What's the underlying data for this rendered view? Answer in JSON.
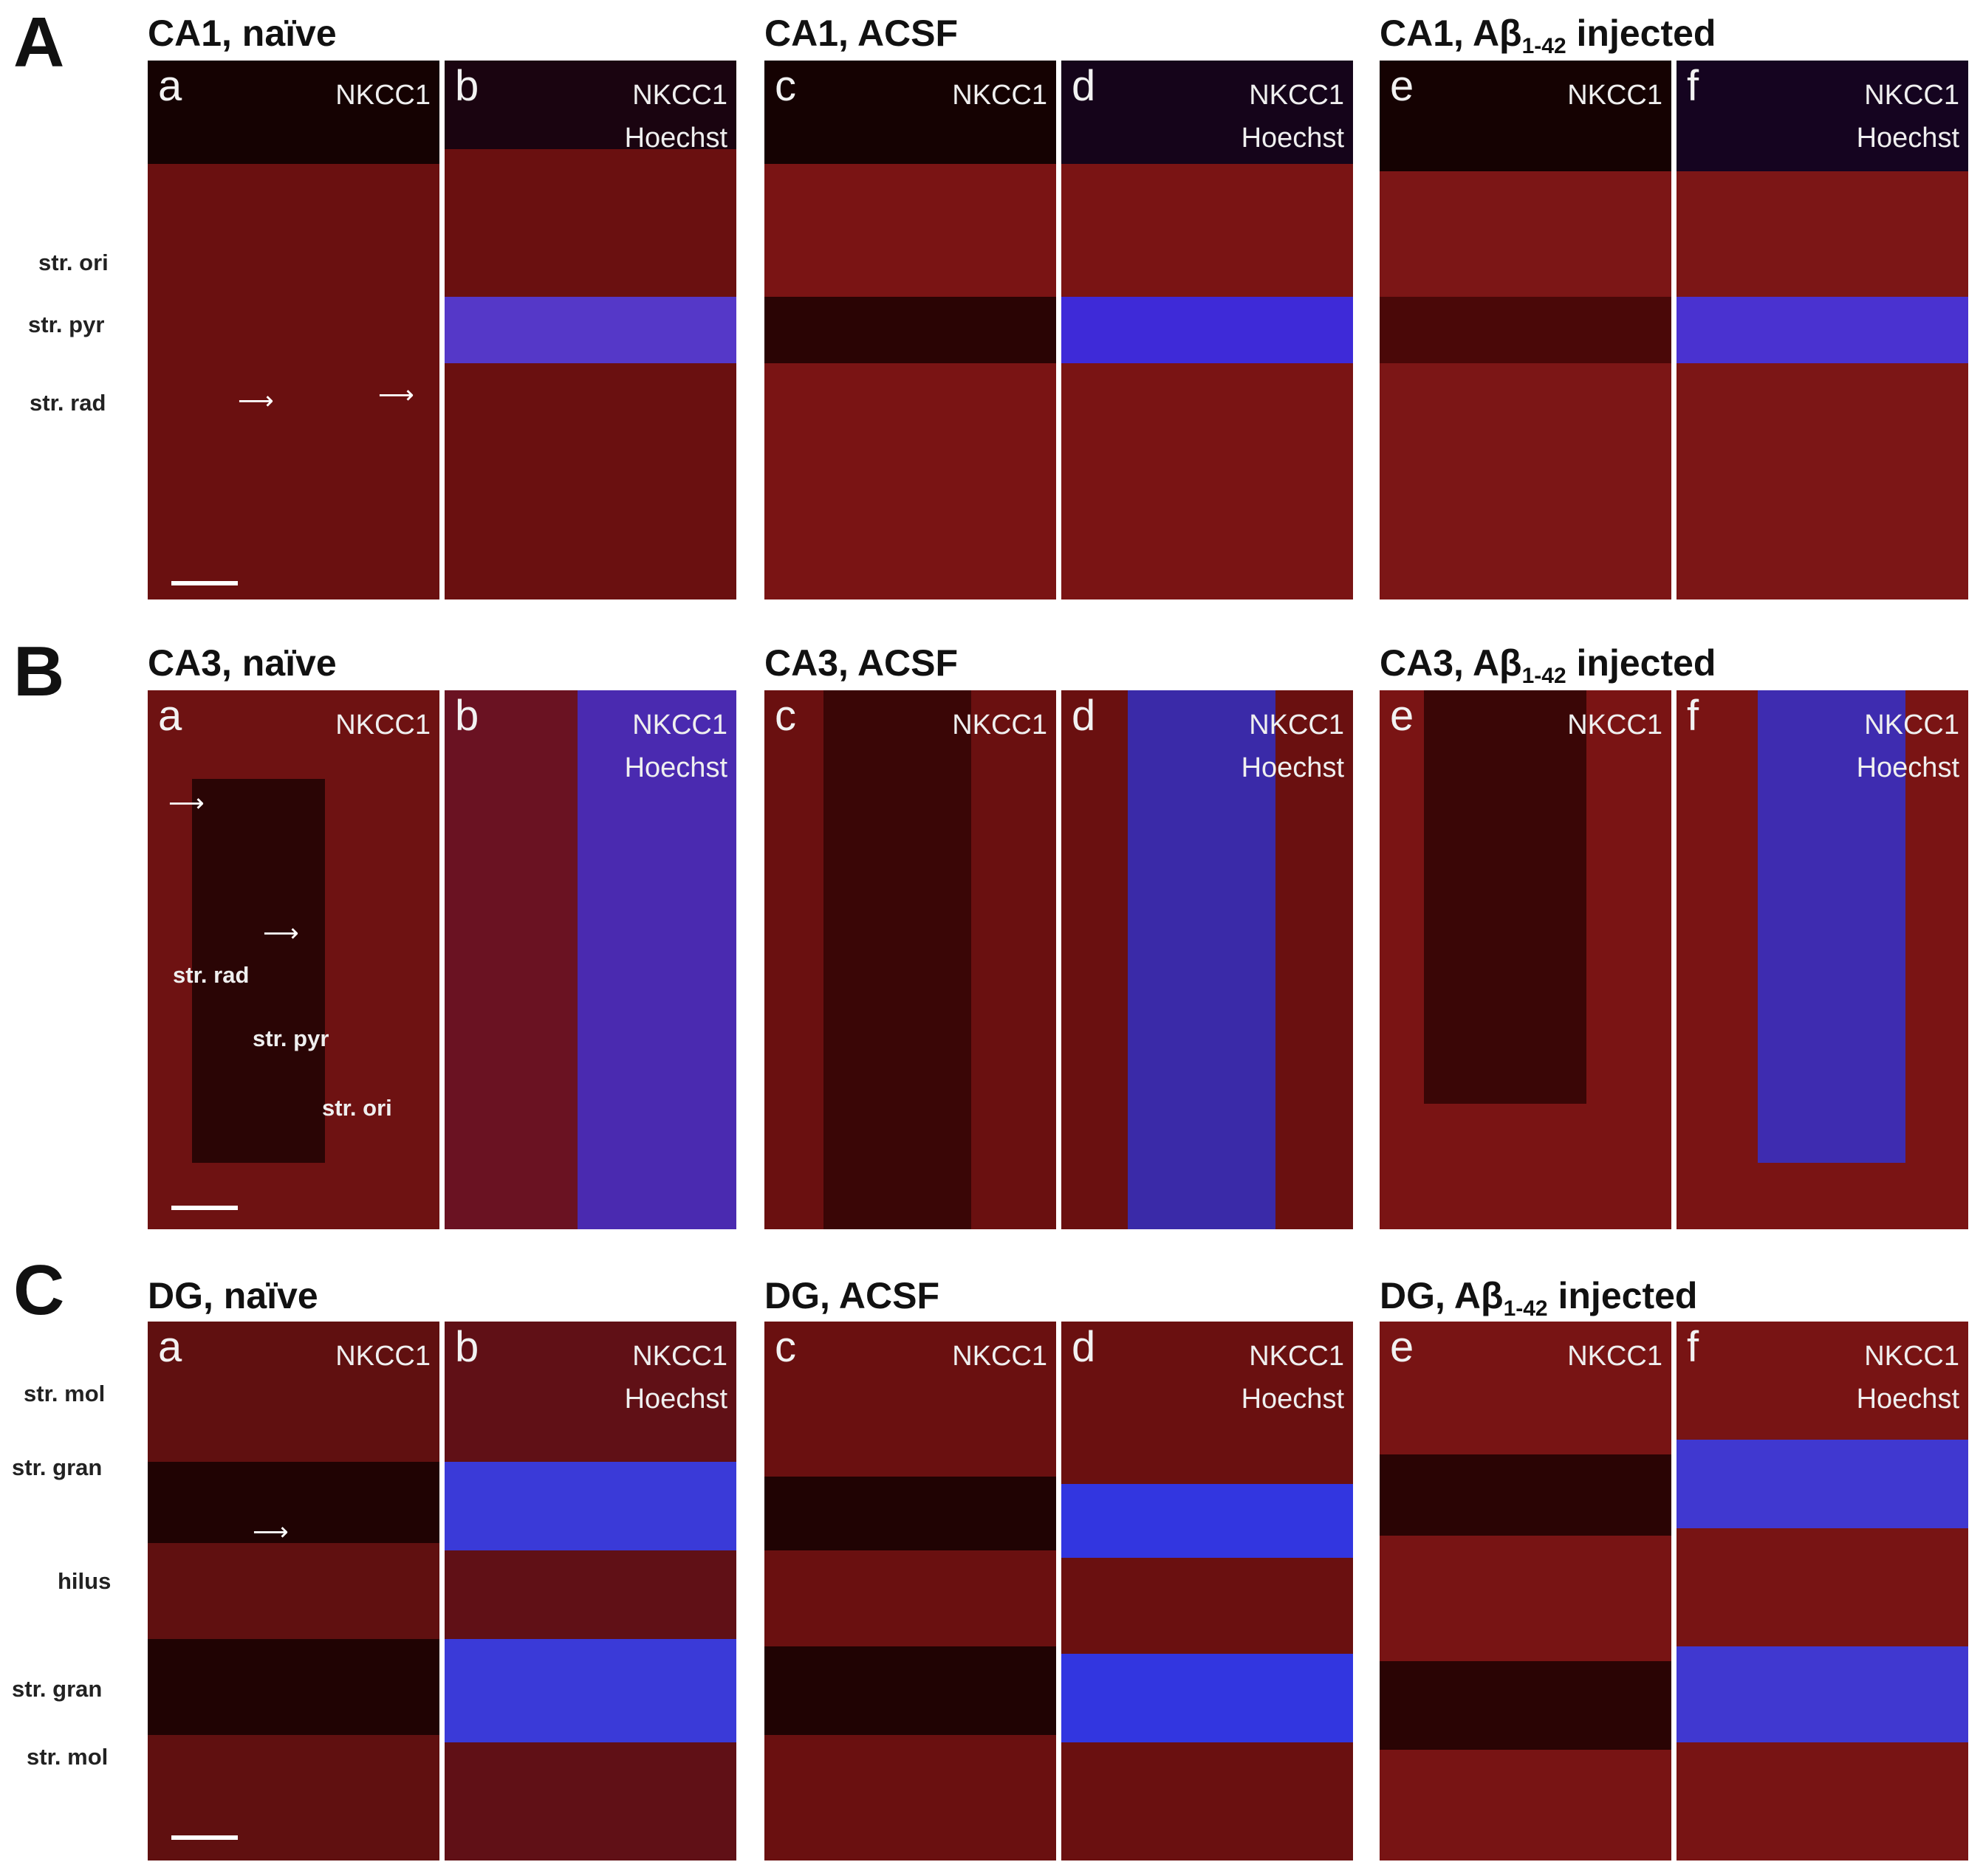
{
  "sections": [
    {
      "letter": "A",
      "groups": [
        {
          "title": "CA1, naïve",
          "region": "CA1",
          "condition": "naïve"
        },
        {
          "title": "CA1, ACSF",
          "region": "CA1",
          "condition": "ACSF"
        },
        {
          "title_main": "CA1, Aβ",
          "title_sub": "1-42",
          "title_tail": " injected",
          "region": "CA1",
          "condition": "Aβ1-42 injected"
        }
      ],
      "layers": [
        "str. ori",
        "str. pyr",
        "str. rad"
      ]
    },
    {
      "letter": "B",
      "groups": [
        {
          "title": "CA3, naïve",
          "region": "CA3",
          "condition": "naïve"
        },
        {
          "title": "CA3, ACSF",
          "region": "CA3",
          "condition": "ACSF"
        },
        {
          "title_main": "CA3, Aβ",
          "title_sub": "1-42",
          "title_tail": " injected",
          "region": "CA3",
          "condition": "Aβ1-42 injected"
        }
      ],
      "layers": [
        "str. rad",
        "str. pyr",
        "str. ori"
      ]
    },
    {
      "letter": "C",
      "groups": [
        {
          "title": "DG, naïve",
          "region": "DG",
          "condition": "naïve"
        },
        {
          "title": "DG, ACSF",
          "region": "DG",
          "condition": "ACSF"
        },
        {
          "title_main": "DG, Aβ",
          "title_sub": "1-42",
          "title_tail": " injected",
          "region": "DG",
          "condition": "Aβ1-42 injected"
        }
      ],
      "layers": [
        "str. mol",
        "str. gran",
        "hilus",
        "str. gran",
        "str. mol"
      ]
    }
  ],
  "panel_letters": [
    "a",
    "b",
    "c",
    "d",
    "e",
    "f"
  ],
  "stain_primary": "NKCC1",
  "stain_secondary": "Hoechst",
  "arrow_glyph": "⟶",
  "colors": {
    "nkcc1_stain": "#c8141e",
    "hoechst_stain": "#2a3cff",
    "background": "#ffffff",
    "label_text": "#111111",
    "panel_text": "#f0f0f0"
  }
}
